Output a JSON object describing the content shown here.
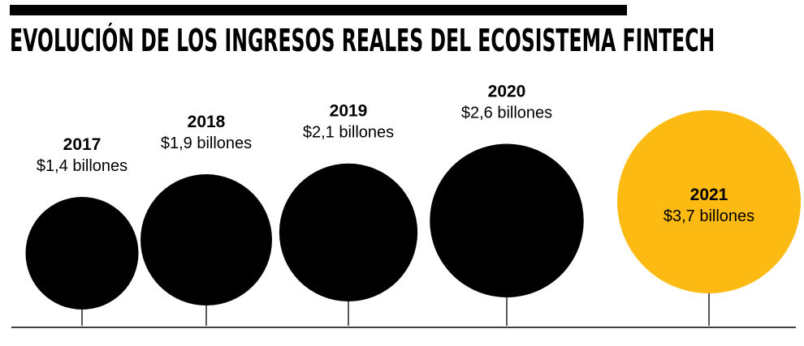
{
  "title": "EVOLUCIÓN DE LOS INGRESOS REALES DEL ECOSISTEMA FINTECH",
  "colors": {
    "default_bubble": "#000000",
    "highlight_bubble": "#FDBA12",
    "baseline": "#000000",
    "text": "#000000"
  },
  "chart_data": {
    "type": "bubble",
    "title": "EVOLUCIÓN DE LOS INGRESOS REALES DEL ECOSISTEMA FINTECH",
    "categories": [
      "2017",
      "2018",
      "2019",
      "2020",
      "2021"
    ],
    "values": [
      1.4,
      1.9,
      2.1,
      2.6,
      3.7
    ],
    "unit": "billones",
    "value_labels": [
      "$1,4 billones",
      "$1,9 billones",
      "$2,1 billones",
      "$2,6 billones",
      "$3,7 billones"
    ],
    "highlight_index": 4,
    "legend": "none",
    "grid": false
  }
}
